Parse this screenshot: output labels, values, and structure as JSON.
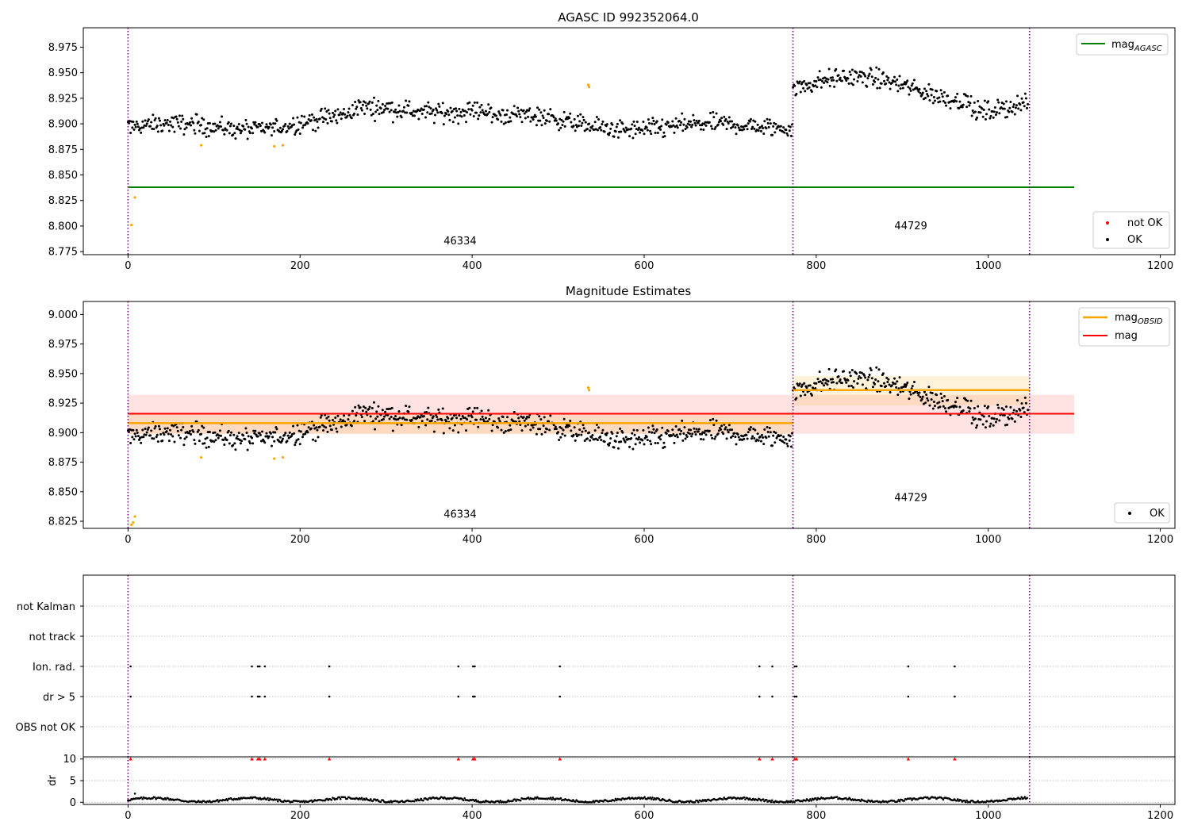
{
  "colors": {
    "ok": "#000000",
    "not_ok": "#ff0000",
    "outlier": "#ffa500",
    "mag_agasc": "#008000",
    "mag_obsid": "#ffa500",
    "mag": "#ff0000",
    "obsid_line": "#800080",
    "grid": "#b0b0b0"
  },
  "chart_data": [
    {
      "id": "top",
      "type": "scatter",
      "title": "AGASC ID 992352064.0",
      "xlim": [
        -52,
        1217
      ],
      "ylim": [
        8.772,
        8.994
      ],
      "x_ticks": [
        0,
        200,
        400,
        600,
        800,
        1000,
        1200
      ],
      "y_ticks": [
        8.775,
        8.8,
        8.825,
        8.85,
        8.875,
        8.9,
        8.925,
        8.95,
        8.975
      ],
      "y_tick_decimals": 3,
      "obsid_boundaries": [
        0,
        773,
        1048
      ],
      "obsid_labels": [
        {
          "text": "46334",
          "x": 386,
          "y": 8.782
        },
        {
          "text": "44729",
          "x": 910,
          "y": 8.797
        }
      ],
      "hlines": [
        {
          "name": "mag_AGASC",
          "value": 8.838,
          "x": [
            0,
            1100
          ],
          "color": "#008000"
        }
      ],
      "outliers": [
        {
          "x": 4,
          "y": 8.801
        },
        {
          "x": 8,
          "y": 8.828
        },
        {
          "x": 85,
          "y": 8.879
        },
        {
          "x": 170,
          "y": 8.878
        },
        {
          "x": 180,
          "y": 8.879
        },
        {
          "x": 535,
          "y": 8.938
        },
        {
          "x": 536,
          "y": 8.936
        }
      ],
      "legend_top": {
        "position": "top-right",
        "items": [
          {
            "label": "mag",
            "sub": "AGASC",
            "kind": "line",
            "color": "#008000"
          }
        ]
      },
      "legend_bottom": {
        "position": "bottom-right",
        "items": [
          {
            "label": "not OK",
            "kind": "dot",
            "color": "#ff0000"
          },
          {
            "label": "OK",
            "kind": "dot",
            "color": "#000000"
          }
        ]
      }
    },
    {
      "id": "mid",
      "type": "scatter",
      "title": "Magnitude Estimates",
      "xlim": [
        -52,
        1217
      ],
      "ylim": [
        8.819,
        9.011
      ],
      "x_ticks": [
        0,
        200,
        400,
        600,
        800,
        1000,
        1200
      ],
      "y_ticks": [
        8.825,
        8.85,
        8.875,
        8.9,
        8.925,
        8.95,
        8.975,
        9.0
      ],
      "y_tick_decimals": 3,
      "obsid_boundaries": [
        0,
        773,
        1048
      ],
      "obsid_labels": [
        {
          "text": "46334",
          "x": 386,
          "y": 8.828
        },
        {
          "text": "44729",
          "x": 910,
          "y": 8.842
        }
      ],
      "mag": {
        "value": 8.916,
        "band": [
          8.899,
          8.932
        ],
        "x": [
          0,
          1100
        ]
      },
      "mag_obsid": [
        {
          "value": 8.908,
          "band": [
            8.899,
            8.917
          ],
          "x": [
            0,
            773
          ]
        },
        {
          "value": 8.936,
          "band": [
            8.923,
            8.948
          ],
          "x": [
            773,
            1048
          ]
        }
      ],
      "outliers": [
        {
          "x": 4,
          "y": 8.822
        },
        {
          "x": 6,
          "y": 8.824
        },
        {
          "x": 8,
          "y": 8.829
        },
        {
          "x": 85,
          "y": 8.879
        },
        {
          "x": 170,
          "y": 8.878
        },
        {
          "x": 180,
          "y": 8.879
        },
        {
          "x": 535,
          "y": 8.938
        },
        {
          "x": 536,
          "y": 8.936
        }
      ],
      "legend_top": {
        "position": "top-right",
        "items": [
          {
            "label": "mag",
            "sub": "OBSID",
            "kind": "line",
            "color": "#ffa500"
          },
          {
            "label": "mag",
            "kind": "line",
            "color": "#ff0000"
          }
        ]
      },
      "legend_bottom": {
        "position": "bottom-right",
        "items": [
          {
            "label": "OK",
            "kind": "dot",
            "color": "#000000"
          }
        ]
      }
    },
    {
      "id": "flags",
      "type": "scatter",
      "xlim": [
        -52,
        1217
      ],
      "categories": [
        "not Kalman",
        "not track",
        "Ion. rad.",
        "dr > 5",
        "OBS not OK"
      ],
      "obsid_boundaries": [
        0,
        773,
        1048
      ],
      "flag_points": {
        "Ion. rad.": [
          3,
          144,
          151,
          153,
          159,
          234,
          384,
          401,
          403,
          502,
          734,
          749,
          775,
          777,
          907,
          961
        ],
        "dr > 5": [
          3,
          144,
          151,
          153,
          159,
          234,
          384,
          401,
          403,
          502,
          734,
          749,
          775,
          777,
          907,
          961
        ]
      }
    },
    {
      "id": "dr",
      "type": "scatter",
      "ylabel": "dr",
      "xlim": [
        -52,
        1217
      ],
      "ylim": [
        -0.5,
        10.5
      ],
      "y_ticks": [
        0,
        5,
        10
      ],
      "x_ticks": [
        0,
        200,
        400,
        600,
        800,
        1000,
        1200
      ],
      "obsid_boundaries": [
        0,
        773,
        1048
      ],
      "capped_points": [
        3,
        144,
        151,
        153,
        159,
        234,
        384,
        401,
        403,
        502,
        734,
        749,
        775,
        777,
        907,
        961
      ]
    }
  ]
}
